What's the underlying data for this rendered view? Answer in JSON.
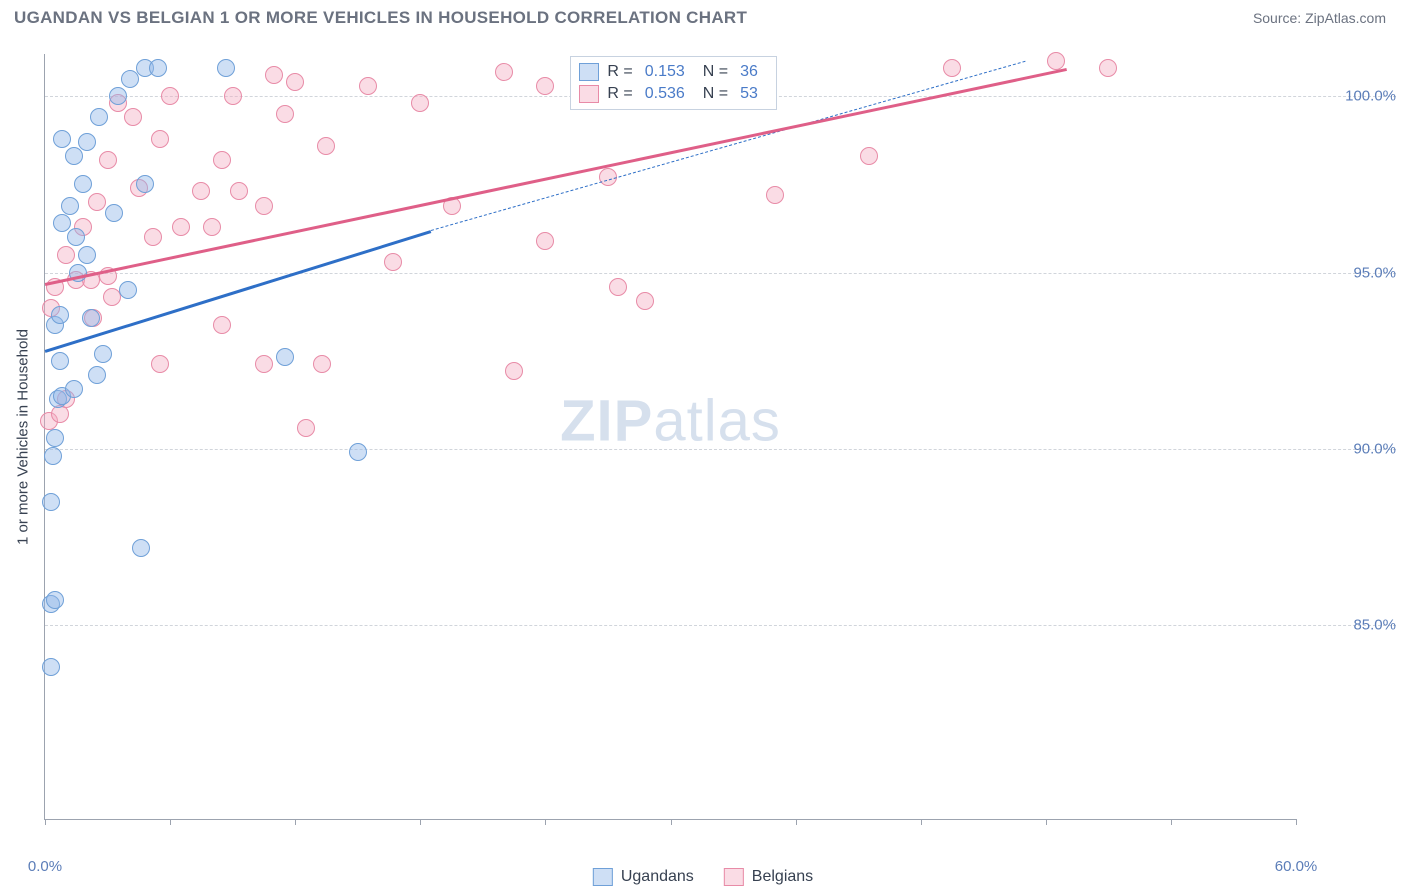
{
  "title": "UGANDAN VS BELGIAN 1 OR MORE VEHICLES IN HOUSEHOLD CORRELATION CHART",
  "source": "Source: ZipAtlas.com",
  "ylabel": "1 or more Vehicles in Household",
  "watermark_zip": "ZIP",
  "watermark_atlas": "atlas",
  "chart": {
    "type": "scatter",
    "x_domain": [
      0,
      60
    ],
    "y_domain": [
      79.5,
      101.2
    ],
    "y_ticks": [
      85.0,
      90.0,
      95.0,
      100.0
    ],
    "y_tick_labels": [
      "85.0%",
      "90.0%",
      "95.0%",
      "100.0%"
    ],
    "x_ticks": [
      0,
      6,
      12,
      18,
      24,
      30,
      36,
      42,
      48,
      54,
      60
    ],
    "x_tick_labels": {
      "0": "0.0%",
      "60": "60.0%"
    },
    "background_color": "#ffffff",
    "grid_color": "#d1d5db",
    "axis_color": "#9ca3af",
    "label_color": "#5b7db8",
    "title_color": "#6b7280"
  },
  "series": {
    "ugandans": {
      "label": "Ugandans",
      "fill": "rgba(147,185,232,0.45)",
      "stroke": "#6fa0d8",
      "line_color": "#2e6fc7",
      "marker_radius": 9,
      "r_value": "0.153",
      "n_value": "36",
      "regression": {
        "x1": 0,
        "y1": 92.8,
        "x2": 18.5,
        "y2": 96.2,
        "x2_dash": 47,
        "y2_dash": 101.0
      },
      "points": [
        [
          0.3,
          83.8
        ],
        [
          0.3,
          85.6
        ],
        [
          0.5,
          85.7
        ],
        [
          0.3,
          88.5
        ],
        [
          4.6,
          87.2
        ],
        [
          0.4,
          89.8
        ],
        [
          0.5,
          90.3
        ],
        [
          0.6,
          91.4
        ],
        [
          0.8,
          91.5
        ],
        [
          1.4,
          91.7
        ],
        [
          2.5,
          92.1
        ],
        [
          0.7,
          92.5
        ],
        [
          2.8,
          92.7
        ],
        [
          11.5,
          92.6
        ],
        [
          15.0,
          89.9
        ],
        [
          0.5,
          93.5
        ],
        [
          0.7,
          93.8
        ],
        [
          2.2,
          93.7
        ],
        [
          4.0,
          94.5
        ],
        [
          1.6,
          95.0
        ],
        [
          2.0,
          95.5
        ],
        [
          1.5,
          96.0
        ],
        [
          0.8,
          96.4
        ],
        [
          3.3,
          96.7
        ],
        [
          1.2,
          96.9
        ],
        [
          1.8,
          97.5
        ],
        [
          1.4,
          98.3
        ],
        [
          4.8,
          97.5
        ],
        [
          0.8,
          98.8
        ],
        [
          2.0,
          98.7
        ],
        [
          2.6,
          99.4
        ],
        [
          3.5,
          100.0
        ],
        [
          4.1,
          100.5
        ],
        [
          4.8,
          100.8
        ],
        [
          5.4,
          100.8
        ],
        [
          8.7,
          100.8
        ]
      ]
    },
    "belgians": {
      "label": "Belgians",
      "fill": "rgba(244,172,193,0.42)",
      "stroke": "#e88ba7",
      "line_color": "#df5f88",
      "marker_radius": 9,
      "r_value": "0.536",
      "n_value": "53",
      "regression": {
        "x1": 0,
        "y1": 94.7,
        "x2": 49,
        "y2": 100.8
      },
      "points": [
        [
          0.2,
          90.8
        ],
        [
          0.7,
          91.0
        ],
        [
          1.0,
          91.4
        ],
        [
          5.5,
          92.4
        ],
        [
          10.5,
          92.4
        ],
        [
          12.5,
          90.6
        ],
        [
          13.3,
          92.4
        ],
        [
          22.5,
          92.2
        ],
        [
          2.3,
          93.7
        ],
        [
          3.2,
          94.3
        ],
        [
          0.5,
          94.6
        ],
        [
          1.5,
          94.8
        ],
        [
          2.2,
          94.8
        ],
        [
          3.0,
          94.9
        ],
        [
          8.5,
          93.5
        ],
        [
          16.7,
          95.3
        ],
        [
          5.2,
          96.0
        ],
        [
          6.5,
          96.3
        ],
        [
          8.0,
          96.3
        ],
        [
          7.5,
          97.3
        ],
        [
          10.5,
          96.9
        ],
        [
          24.0,
          95.9
        ],
        [
          27.5,
          94.6
        ],
        [
          3.0,
          98.2
        ],
        [
          5.5,
          98.8
        ],
        [
          8.5,
          98.2
        ],
        [
          13.5,
          98.6
        ],
        [
          4.2,
          99.4
        ],
        [
          11.5,
          99.5
        ],
        [
          3.5,
          99.8
        ],
        [
          6.0,
          100.0
        ],
        [
          9.0,
          100.0
        ],
        [
          12.0,
          100.4
        ],
        [
          11.0,
          100.6
        ],
        [
          15.5,
          100.3
        ],
        [
          18.0,
          99.8
        ],
        [
          22.0,
          100.7
        ],
        [
          24.0,
          100.3
        ],
        [
          27.0,
          97.7
        ],
        [
          35.0,
          97.2
        ],
        [
          28.8,
          94.2
        ],
        [
          33.5,
          100.6
        ],
        [
          39.5,
          98.3
        ],
        [
          43.5,
          100.8
        ],
        [
          48.5,
          101.0
        ],
        [
          51.0,
          100.8
        ],
        [
          0.3,
          94.0
        ],
        [
          1.0,
          95.5
        ],
        [
          1.8,
          96.3
        ],
        [
          2.5,
          97.0
        ],
        [
          4.5,
          97.4
        ],
        [
          9.3,
          97.3
        ],
        [
          19.5,
          96.9
        ]
      ]
    }
  },
  "legend_r_label": "R  =",
  "legend_n_label": "N  ="
}
